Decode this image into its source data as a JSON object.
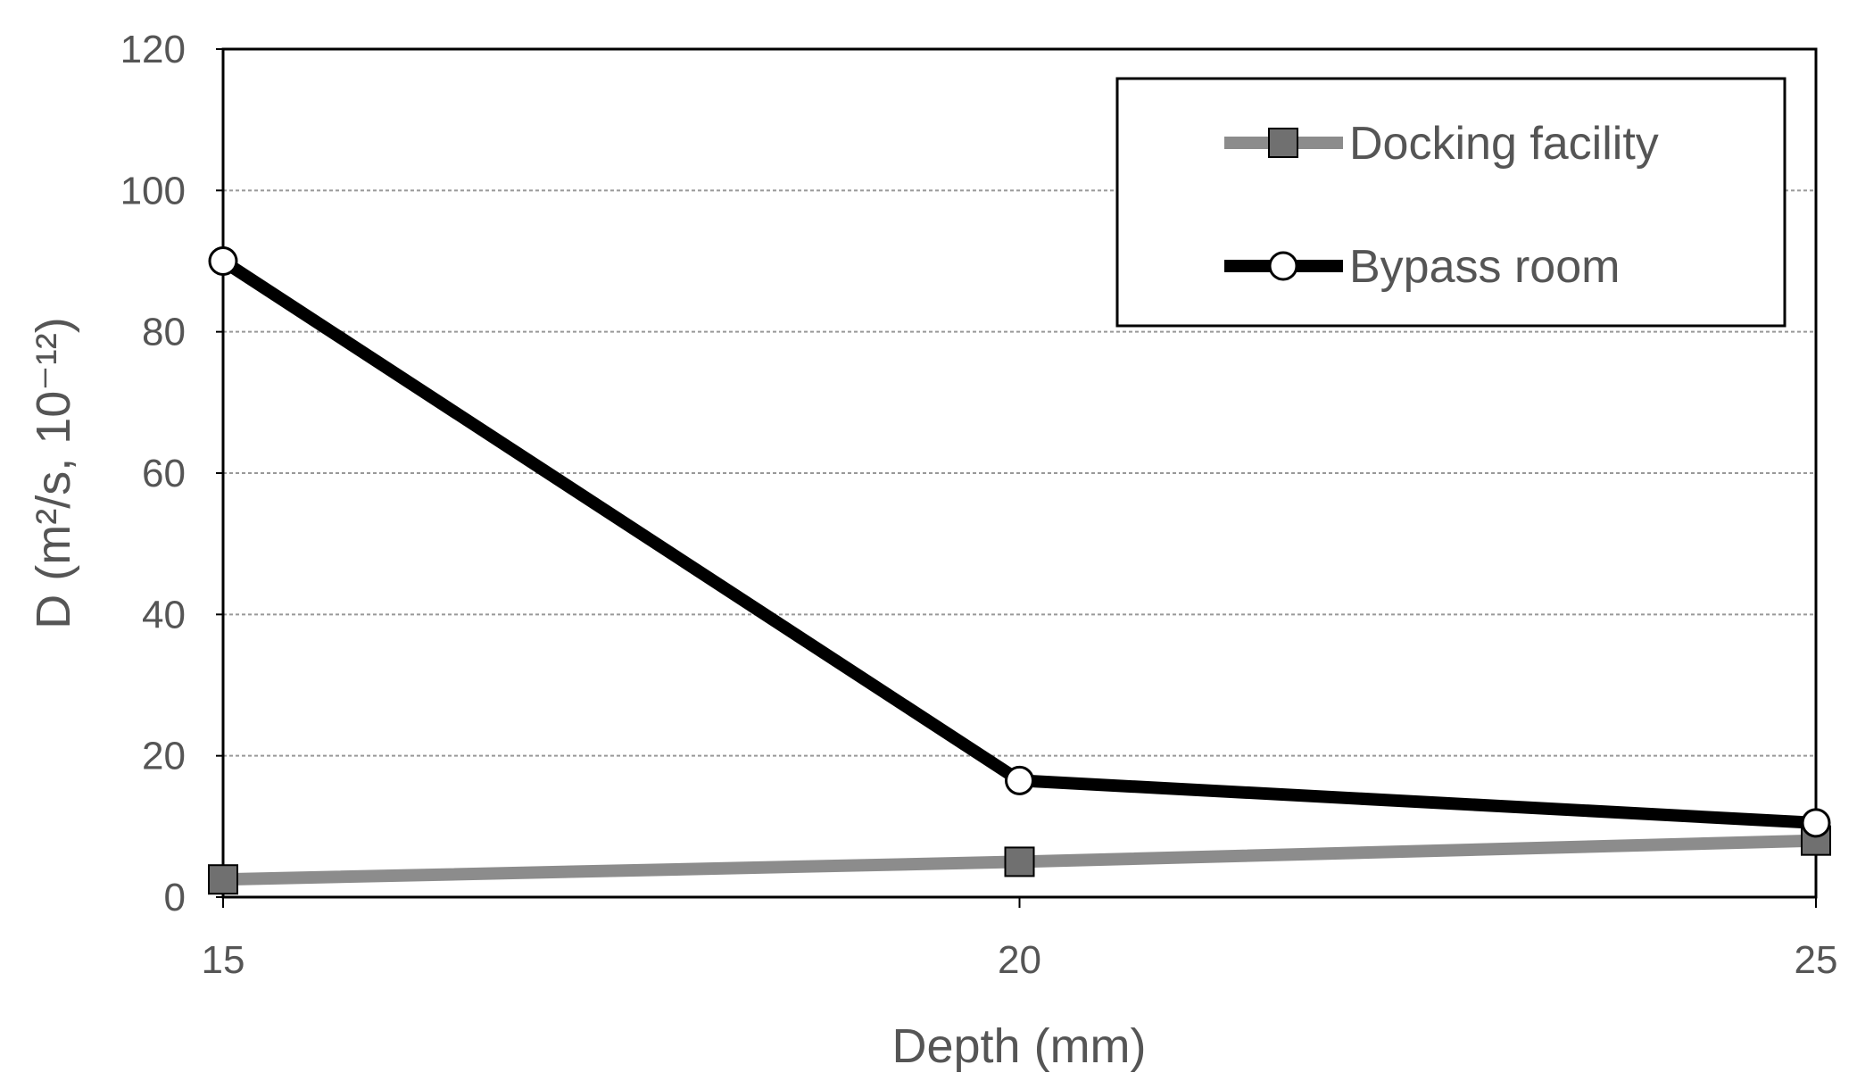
{
  "chart_data": {
    "type": "line",
    "title": "",
    "xlabel": "Depth (mm)",
    "ylabel": "D (m²/s, 10⁻¹²)",
    "x": [
      15,
      20,
      25
    ],
    "xlim": [
      15,
      25
    ],
    "ylim": [
      0,
      120
    ],
    "xticks": [
      "15",
      "20",
      "25"
    ],
    "yticks": [
      "0",
      "20",
      "40",
      "60",
      "80",
      "100",
      "120"
    ],
    "grid": "horizontal dotted",
    "legend_position": "top-right",
    "series": [
      {
        "name": "Docking facility",
        "values": [
          2.5,
          5,
          8
        ],
        "color": "#8c8c8c",
        "marker": "square"
      },
      {
        "name": "Bypass room",
        "values": [
          90,
          16.5,
          10.5
        ],
        "color": "#000000",
        "marker": "circle"
      }
    ]
  }
}
